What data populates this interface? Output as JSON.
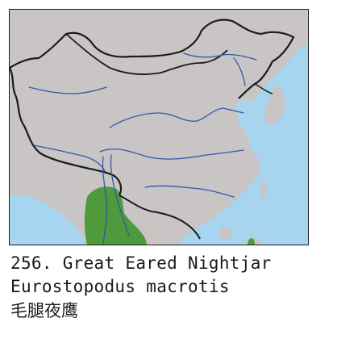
{
  "map": {
    "colors": {
      "sea": "#a7d4ee",
      "land": "#c9c5c5",
      "border": "#1a1a1a",
      "river": "#2f5aa8",
      "range": "#4e9a3c"
    }
  },
  "caption": {
    "line1": "256. Great Eared Nightjar",
    "line2": "Eurostopodus macrotis",
    "line3": "毛腿夜鹰"
  }
}
